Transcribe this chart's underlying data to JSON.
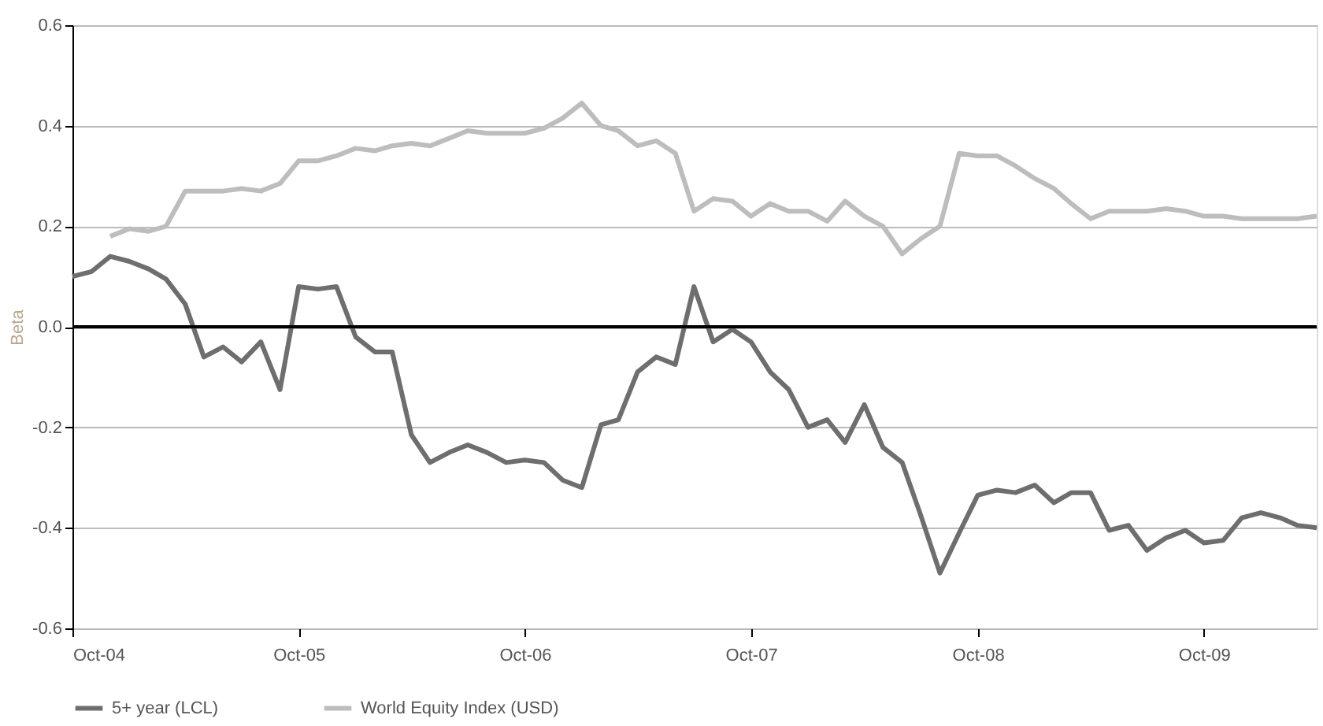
{
  "chart_data": {
    "type": "line",
    "ylabel": "Beta",
    "x": [
      "2004-10",
      "2004-11",
      "2004-12",
      "2005-01",
      "2005-02",
      "2005-03",
      "2005-04",
      "2005-05",
      "2005-06",
      "2005-07",
      "2005-08",
      "2005-09",
      "2005-10",
      "2005-11",
      "2005-12",
      "2006-01",
      "2006-02",
      "2006-03",
      "2006-04",
      "2006-05",
      "2006-06",
      "2006-07",
      "2006-08",
      "2006-09",
      "2006-10",
      "2006-11",
      "2006-12",
      "2007-01",
      "2007-02",
      "2007-03",
      "2007-04",
      "2007-05",
      "2007-06",
      "2007-07",
      "2007-08",
      "2007-09",
      "2007-10",
      "2007-11",
      "2007-12",
      "2008-01",
      "2008-02",
      "2008-03",
      "2008-04",
      "2008-05",
      "2008-06",
      "2008-07",
      "2008-08",
      "2008-09",
      "2008-10",
      "2008-11",
      "2008-12",
      "2009-01",
      "2009-02",
      "2009-03",
      "2009-04",
      "2009-05",
      "2009-06",
      "2009-07",
      "2009-08",
      "2009-09",
      "2009-10",
      "2009-11",
      "2009-12",
      "2010-01",
      "2010-02",
      "2010-03",
      "2010-04"
    ],
    "series": [
      {
        "name": "5+ year (LCL)",
        "color": "#6e6e6e",
        "values": [
          0.1,
          0.11,
          0.14,
          0.13,
          0.115,
          0.095,
          0.045,
          -0.06,
          -0.04,
          -0.07,
          -0.03,
          -0.125,
          0.08,
          0.075,
          0.08,
          -0.02,
          -0.05,
          -0.05,
          -0.215,
          -0.27,
          -0.25,
          -0.235,
          -0.25,
          -0.27,
          -0.265,
          -0.27,
          -0.305,
          -0.32,
          -0.195,
          -0.185,
          -0.09,
          -0.06,
          -0.075,
          0.08,
          -0.03,
          -0.005,
          -0.03,
          -0.09,
          -0.125,
          -0.2,
          -0.185,
          -0.23,
          -0.155,
          -0.24,
          -0.27,
          -0.375,
          -0.49,
          -0.41,
          -0.335,
          -0.325,
          -0.33,
          -0.315,
          -0.35,
          -0.33,
          -0.33,
          -0.405,
          -0.395,
          -0.445,
          -0.42,
          -0.405,
          -0.43,
          -0.425,
          -0.38,
          -0.37,
          -0.38,
          -0.395,
          -0.4
        ]
      },
      {
        "name": "World Equity Index (USD)",
        "color": "#bdbdbd",
        "x": [
          "2004-12",
          "2005-01",
          "2005-02",
          "2005-03",
          "2005-04",
          "2005-05",
          "2005-06",
          "2005-07",
          "2005-08",
          "2005-09",
          "2005-10",
          "2005-11",
          "2005-12",
          "2006-01",
          "2006-02",
          "2006-03",
          "2006-04",
          "2006-05",
          "2006-06",
          "2006-07",
          "2006-08",
          "2006-09",
          "2006-10",
          "2006-11",
          "2006-12",
          "2007-01",
          "2007-02",
          "2007-03",
          "2007-04",
          "2007-05",
          "2007-06",
          "2007-07",
          "2007-08",
          "2007-09",
          "2007-10",
          "2007-11",
          "2007-12",
          "2008-01",
          "2008-02",
          "2008-03",
          "2008-04",
          "2008-05",
          "2008-06",
          "2008-07",
          "2008-08",
          "2008-09",
          "2008-10",
          "2008-11",
          "2008-12",
          "2009-01",
          "2009-02",
          "2009-03",
          "2009-04",
          "2009-05",
          "2009-06",
          "2009-07",
          "2009-08",
          "2009-09",
          "2009-10",
          "2009-11",
          "2009-12",
          "2010-01",
          "2010-02",
          "2010-03",
          "2010-04"
        ],
        "values": [
          0.18,
          0.195,
          0.19,
          0.2,
          0.27,
          0.27,
          0.27,
          0.275,
          0.27,
          0.285,
          0.33,
          0.33,
          0.34,
          0.355,
          0.35,
          0.36,
          0.365,
          0.36,
          0.375,
          0.39,
          0.385,
          0.385,
          0.385,
          0.395,
          0.415,
          0.445,
          0.4,
          0.39,
          0.36,
          0.37,
          0.345,
          0.23,
          0.255,
          0.25,
          0.22,
          0.245,
          0.23,
          0.23,
          0.21,
          0.25,
          0.22,
          0.2,
          0.145,
          0.175,
          0.2,
          0.345,
          0.34,
          0.34,
          0.32,
          0.295,
          0.275,
          0.245,
          0.215,
          0.23,
          0.23,
          0.23,
          0.235,
          0.23,
          0.22,
          0.22,
          0.215,
          0.215,
          0.215,
          0.215,
          0.22
        ]
      }
    ],
    "xlim": [
      "2004-10",
      "2010-04"
    ],
    "xticks": [
      {
        "value": "2004-10",
        "label": "Oct-04"
      },
      {
        "value": "2005-10",
        "label": "Oct-05"
      },
      {
        "value": "2006-10",
        "label": "Oct-06"
      },
      {
        "value": "2007-10",
        "label": "Oct-07"
      },
      {
        "value": "2008-10",
        "label": "Oct-08"
      },
      {
        "value": "2009-10",
        "label": "Oct-09"
      }
    ],
    "ylim": [
      -0.6,
      0.6
    ],
    "yticks": [
      {
        "value": -0.6,
        "label": "-0.6"
      },
      {
        "value": -0.4,
        "label": "-0.4"
      },
      {
        "value": -0.2,
        "label": "-0.2"
      },
      {
        "value": 0,
        "label": "0.0"
      },
      {
        "value": 0.2,
        "label": "0.2"
      },
      {
        "value": 0.4,
        "label": "0.4"
      },
      {
        "value": 0.6,
        "label": "0.6"
      }
    ],
    "ref_lines": [
      {
        "axis": "y",
        "value": 0,
        "color": "#000000"
      }
    ],
    "grid": "y",
    "legend": "bottom",
    "marker": "none",
    "line_style": "solid"
  }
}
